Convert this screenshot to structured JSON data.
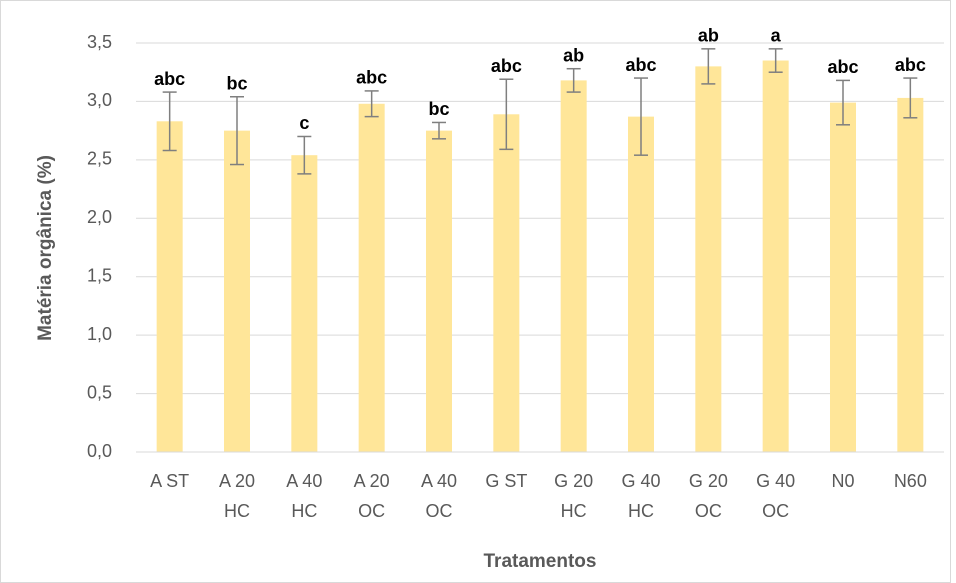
{
  "chart_data": {
    "type": "bar",
    "x_label": "Tratamentos",
    "y_label": "Matéria orgânica (%)",
    "categories": [
      [
        "A ST"
      ],
      [
        "A 20",
        "HC"
      ],
      [
        "A 40",
        "HC"
      ],
      [
        "A 20",
        "OC"
      ],
      [
        "A 40",
        "OC"
      ],
      [
        "G ST"
      ],
      [
        "G 20",
        "HC"
      ],
      [
        "G 40",
        "HC"
      ],
      [
        "G 20",
        "OC"
      ],
      [
        "G 40",
        "OC"
      ],
      [
        "N0"
      ],
      [
        "N60"
      ]
    ],
    "values": [
      2.83,
      2.75,
      2.54,
      2.98,
      2.75,
      2.89,
      3.18,
      2.87,
      3.3,
      3.35,
      2.99,
      3.03
    ],
    "errors": [
      0.25,
      0.29,
      0.16,
      0.11,
      0.07,
      0.3,
      0.1,
      0.33,
      0.15,
      0.1,
      0.19,
      0.17
    ],
    "annotations": [
      "abc",
      "bc",
      "c",
      "abc",
      "bc",
      "abc",
      "ab",
      "abc",
      "ab",
      "a",
      "abc",
      "abc"
    ],
    "color": "#ffe699",
    "error_color": "#7f7f7f",
    "ylim": [
      0,
      3.5
    ],
    "yticks": [
      {
        "value": 0,
        "label": "0,0"
      },
      {
        "value": 0.5,
        "label": "0,5"
      },
      {
        "value": 1,
        "label": "1,0"
      },
      {
        "value": 1.5,
        "label": "1,5"
      },
      {
        "value": 2,
        "label": "2,0"
      },
      {
        "value": 2.5,
        "label": "2,5"
      },
      {
        "value": 3,
        "label": "3,0"
      },
      {
        "value": 3.5,
        "label": "3,5"
      }
    ],
    "grid": true
  }
}
